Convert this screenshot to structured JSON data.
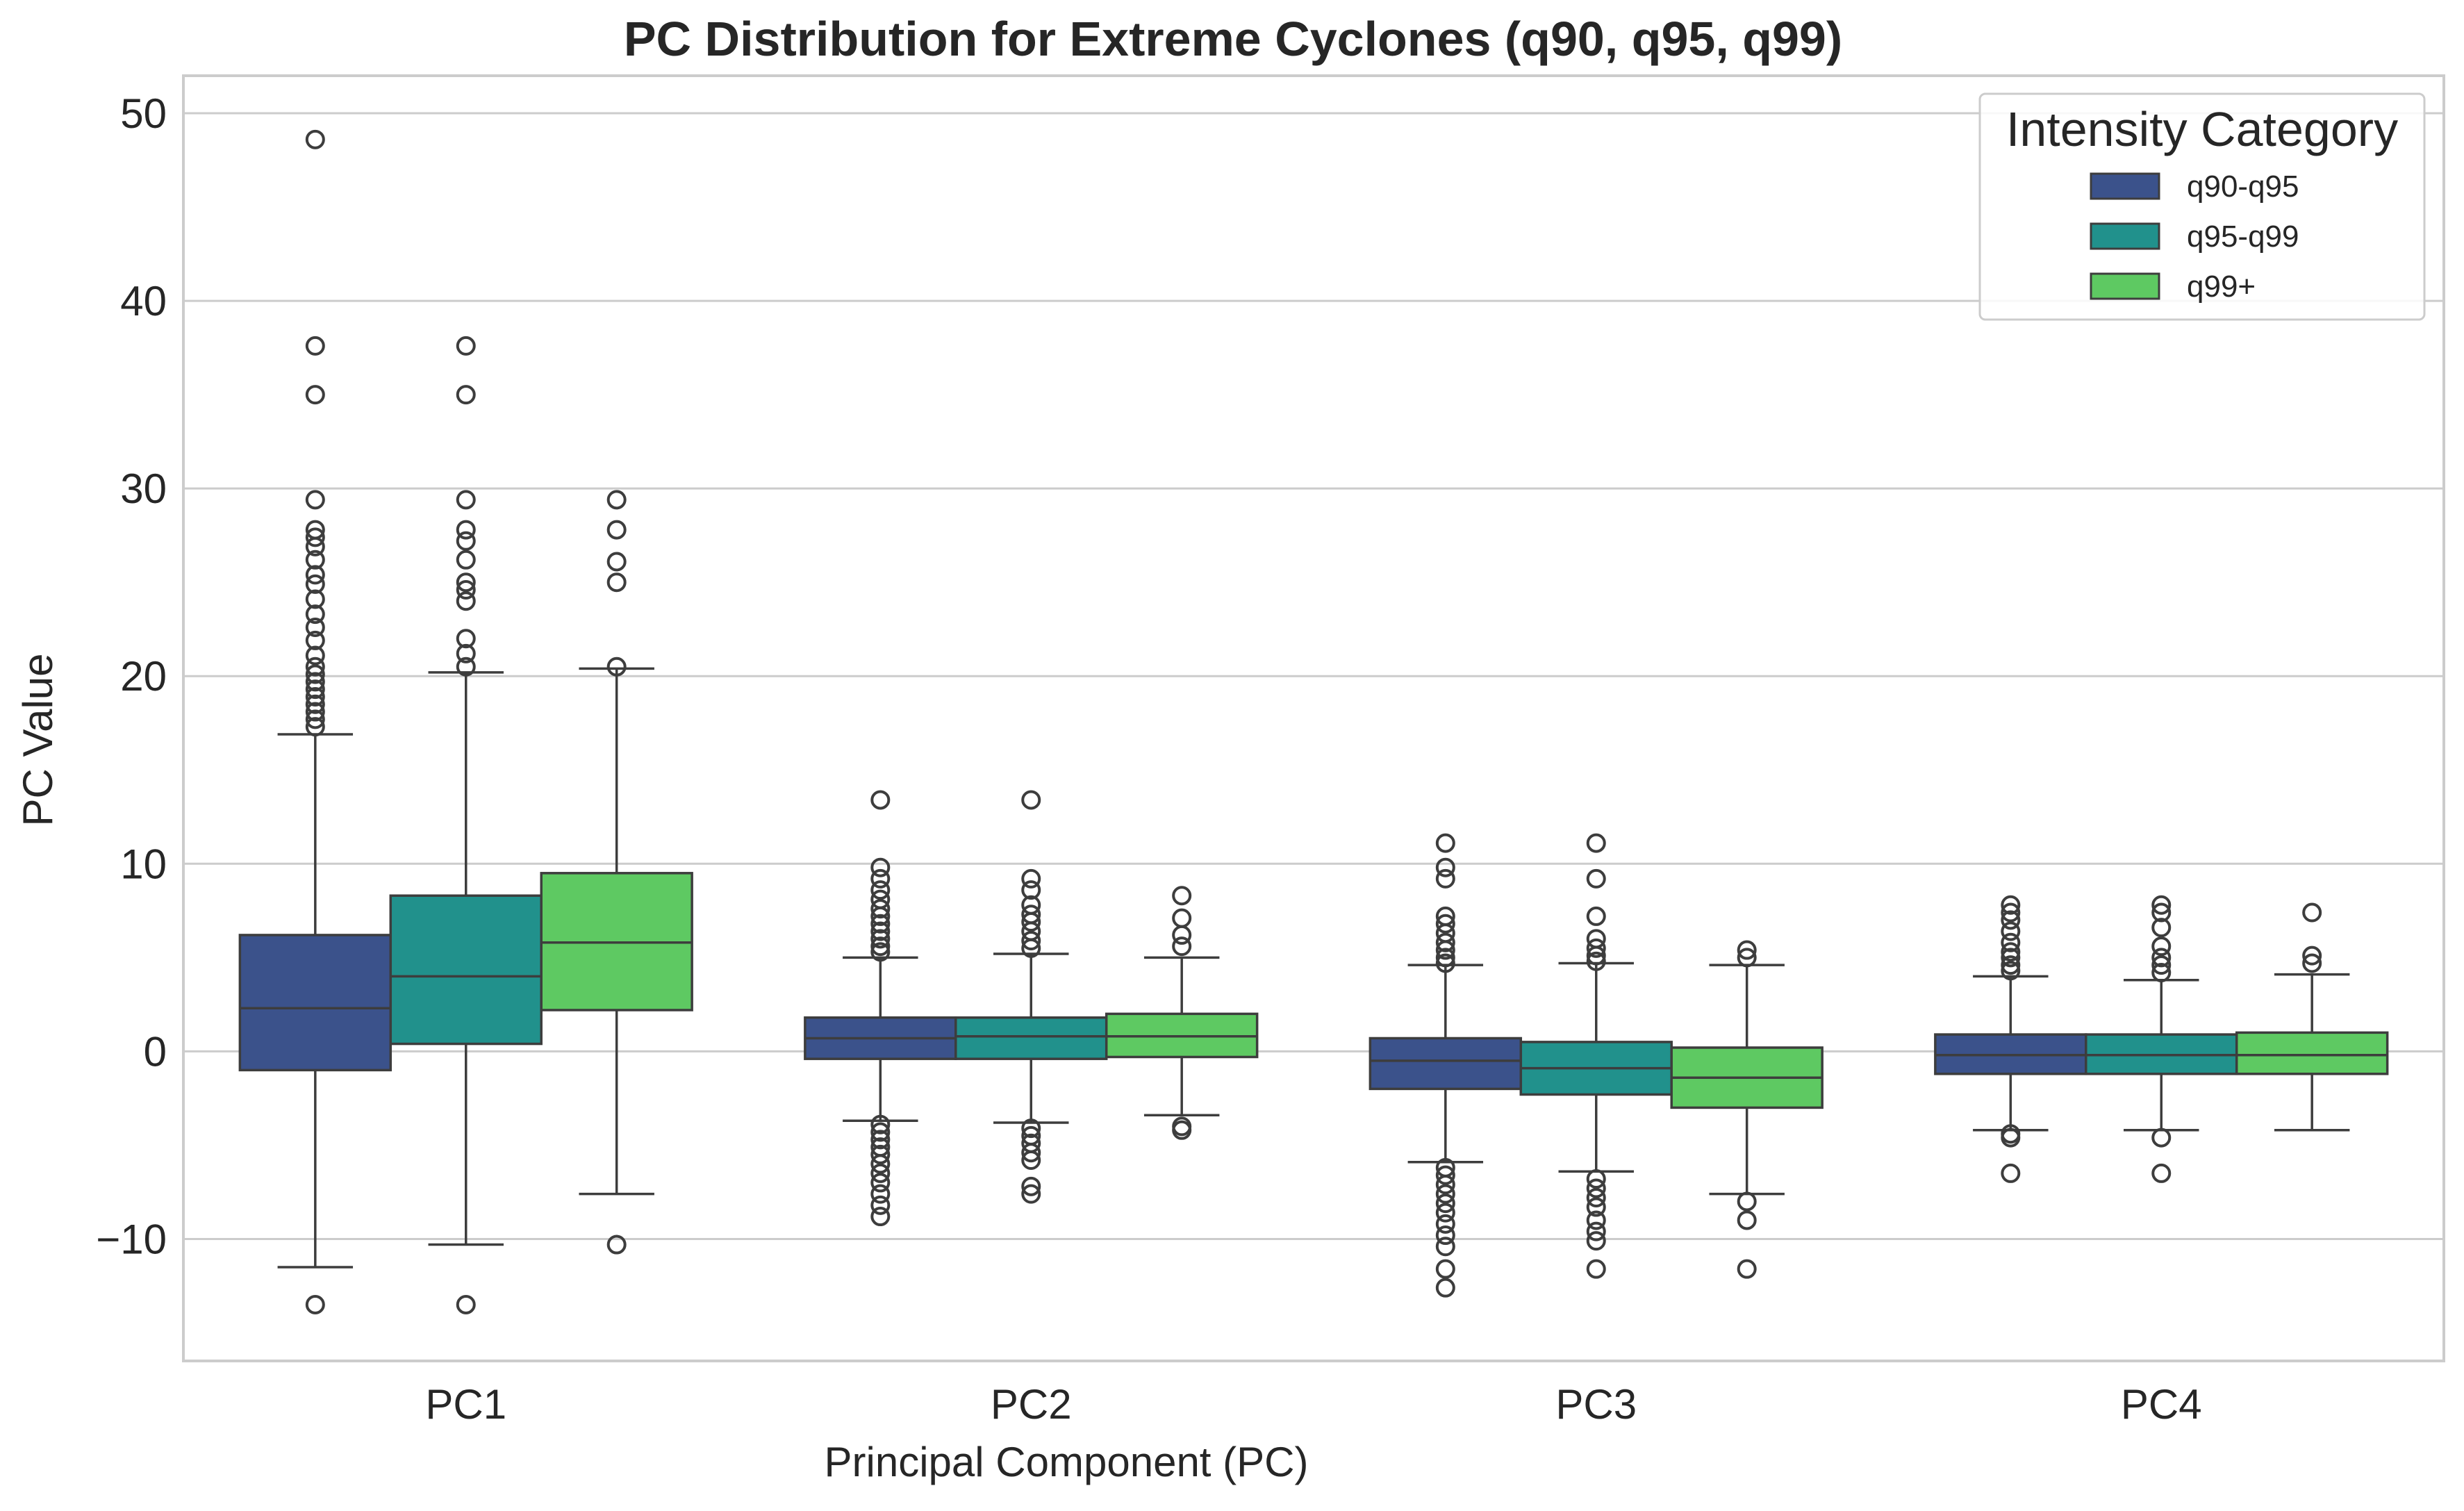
{
  "chart_data": {
    "type": "boxplot",
    "title": "PC Distribution for Extreme Cyclones (q90, q95, q99)",
    "xlabel": "Principal Component (PC)",
    "ylabel": "PC Value",
    "ylim": [
      -16.5,
      52
    ],
    "yticks": [
      50,
      40,
      30,
      20,
      10,
      0,
      -10
    ],
    "ytick_labels": [
      "50",
      "40",
      "30",
      "20",
      "10",
      "0",
      "−10"
    ],
    "grid": "horizontal",
    "legend_placement": "top-right",
    "categories": [
      "PC1",
      "PC2",
      "PC3",
      "PC4"
    ],
    "legend": {
      "title": "Intensity Category"
    },
    "series": [
      {
        "name": "q90-q95",
        "color": "#3b528b",
        "boxes": [
          {
            "q1": -1.0,
            "median": 2.3,
            "q3": 6.2,
            "whisker_low": -11.5,
            "whisker_high": 16.9,
            "outliers": [
              48.6,
              37.6,
              35.0,
              29.4,
              27.8,
              27.4,
              26.9,
              26.2,
              25.4,
              24.9,
              24.1,
              23.3,
              22.6,
              21.9,
              21.1,
              20.5,
              20.1,
              19.7,
              19.3,
              18.9,
              18.5,
              18.1,
              17.7,
              17.3,
              -13.5
            ]
          },
          {
            "q1": -0.4,
            "median": 0.7,
            "q3": 1.8,
            "whisker_low": -3.7,
            "whisker_high": 5.0,
            "outliers": [
              13.4,
              9.8,
              9.2,
              8.6,
              8.1,
              7.6,
              7.2,
              6.8,
              6.4,
              6.0,
              5.6,
              5.3,
              -3.9,
              -4.3,
              -4.7,
              -5.1,
              -5.5,
              -6.0,
              -6.5,
              -7.0,
              -7.6,
              -8.2,
              -8.8
            ]
          },
          {
            "q1": -2.0,
            "median": -0.5,
            "q3": 0.7,
            "whisker_low": -5.9,
            "whisker_high": 4.6,
            "outliers": [
              11.1,
              9.8,
              9.2,
              7.2,
              6.8,
              6.3,
              5.8,
              5.4,
              5.0,
              4.7,
              -6.2,
              -6.6,
              -7.1,
              -7.6,
              -8.1,
              -8.6,
              -9.2,
              -9.8,
              -10.4,
              -11.6,
              -12.6
            ]
          },
          {
            "q1": -1.2,
            "median": -0.2,
            "q3": 0.9,
            "whisker_low": -4.2,
            "whisker_high": 4.0,
            "outliers": [
              7.8,
              7.4,
              7.0,
              6.4,
              5.8,
              5.3,
              5.0,
              4.6,
              4.3,
              -4.4,
              -4.6,
              -6.5
            ]
          }
        ]
      },
      {
        "name": "q95-q99",
        "color": "#21918c",
        "boxes": [
          {
            "q1": 0.4,
            "median": 4.0,
            "q3": 8.3,
            "whisker_low": -10.3,
            "whisker_high": 20.2,
            "outliers": [
              37.6,
              35.0,
              29.4,
              27.8,
              27.2,
              26.2,
              25.0,
              24.6,
              24.0,
              22.0,
              21.2,
              20.5,
              -13.5
            ]
          },
          {
            "q1": -0.4,
            "median": 0.8,
            "q3": 1.8,
            "whisker_low": -3.8,
            "whisker_high": 5.2,
            "outliers": [
              13.4,
              9.2,
              8.6,
              7.8,
              7.3,
              6.9,
              6.4,
              5.9,
              5.5,
              -4.1,
              -4.5,
              -4.9,
              -5.4,
              -5.8,
              -7.2,
              -7.6
            ]
          },
          {
            "q1": -2.3,
            "median": -0.9,
            "q3": 0.5,
            "whisker_low": -6.4,
            "whisker_high": 4.7,
            "outliers": [
              11.1,
              9.2,
              7.2,
              6.0,
              5.5,
              5.1,
              4.8,
              -6.8,
              -7.3,
              -7.8,
              -8.3,
              -9.0,
              -9.6,
              -10.1,
              -11.6
            ]
          },
          {
            "q1": -1.2,
            "median": -0.2,
            "q3": 0.9,
            "whisker_low": -4.2,
            "whisker_high": 3.8,
            "outliers": [
              7.8,
              7.4,
              6.6,
              5.6,
              5.0,
              4.6,
              4.2,
              -4.6,
              -6.5
            ]
          }
        ]
      },
      {
        "name": "q99+",
        "color": "#5ec962",
        "boxes": [
          {
            "q1": 2.2,
            "median": 5.8,
            "q3": 9.5,
            "whisker_low": -7.6,
            "whisker_high": 20.4,
            "outliers": [
              29.4,
              27.8,
              26.1,
              25.0,
              20.5,
              -10.3
            ]
          },
          {
            "q1": -0.3,
            "median": 0.8,
            "q3": 2.0,
            "whisker_low": -3.4,
            "whisker_high": 5.0,
            "outliers": [
              8.3,
              7.1,
              6.2,
              5.6,
              -4.0,
              -4.2
            ]
          },
          {
            "q1": -3.0,
            "median": -1.4,
            "q3": 0.2,
            "whisker_low": -7.6,
            "whisker_high": 4.6,
            "outliers": [
              5.4,
              5.0,
              -8.0,
              -9.0,
              -11.6
            ]
          },
          {
            "q1": -1.2,
            "median": -0.2,
            "q3": 1.0,
            "whisker_low": -4.2,
            "whisker_high": 4.1,
            "outliers": [
              7.4,
              5.1,
              4.7
            ]
          }
        ]
      }
    ]
  }
}
